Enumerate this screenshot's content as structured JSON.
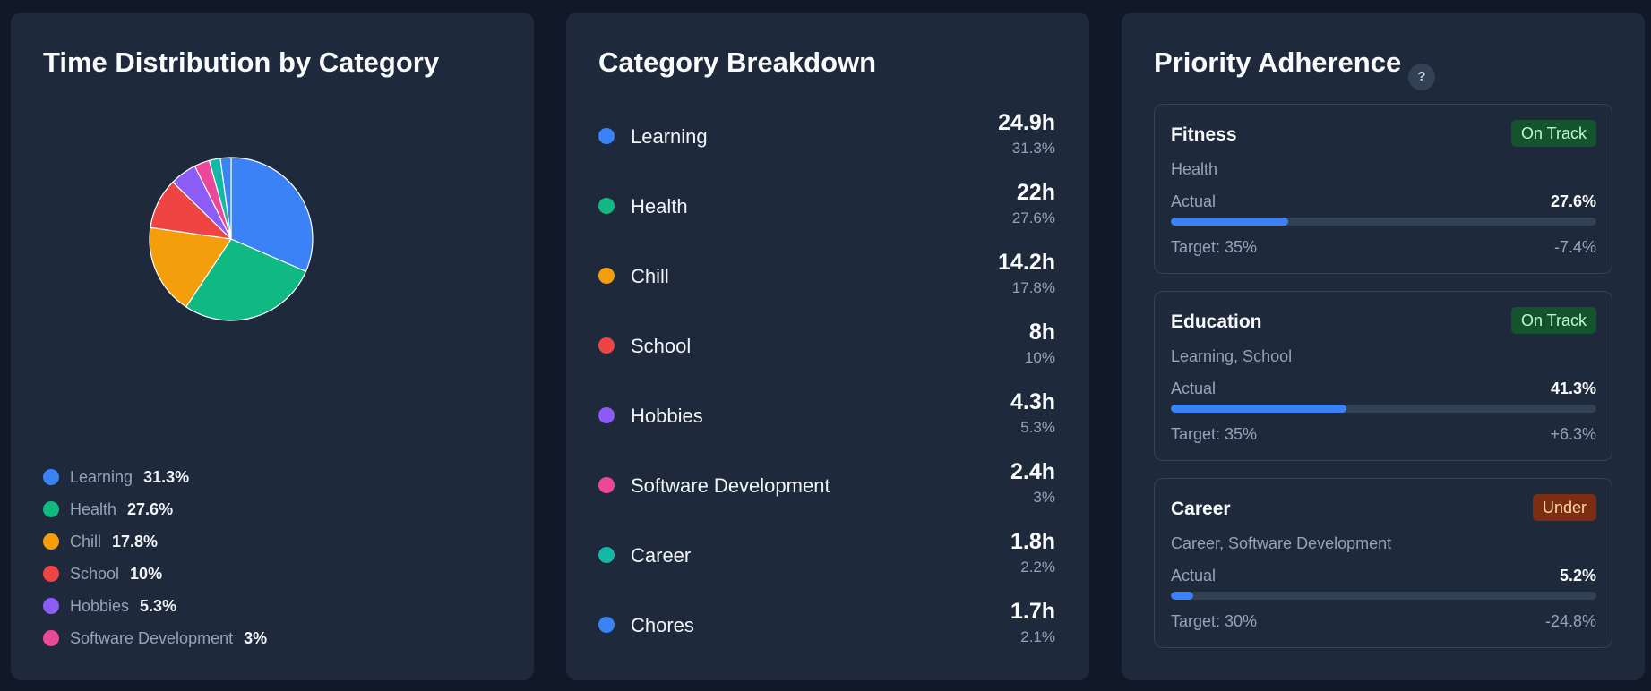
{
  "pie_panel": {
    "title": "Time Distribution by Category",
    "legend": [
      {
        "label": "Learning",
        "pct": "31.3%",
        "color": "#3b82f6"
      },
      {
        "label": "Health",
        "pct": "27.6%",
        "color": "#10b981"
      },
      {
        "label": "Chill",
        "pct": "17.8%",
        "color": "#f59e0b"
      },
      {
        "label": "School",
        "pct": "10%",
        "color": "#ef4444"
      },
      {
        "label": "Hobbies",
        "pct": "5.3%",
        "color": "#8b5cf6"
      },
      {
        "label": "Software Development",
        "pct": "3%",
        "color": "#ec4899"
      }
    ]
  },
  "chart_data": {
    "type": "pie",
    "categories": [
      "Learning",
      "Health",
      "Chill",
      "School",
      "Hobbies",
      "Software Development",
      "Career",
      "Chores"
    ],
    "values": [
      31.3,
      27.6,
      17.8,
      10,
      5.3,
      3,
      2.2,
      2.1
    ],
    "colors": [
      "#3b82f6",
      "#10b981",
      "#f59e0b",
      "#ef4444",
      "#8b5cf6",
      "#ec4899",
      "#14b8a6",
      "#3b82f6"
    ],
    "title": "Time Distribution by Category",
    "start_angle_deg": 90
  },
  "breakdown": {
    "title": "Category Breakdown",
    "items": [
      {
        "name": "Learning",
        "hours": "24.9h",
        "pct": "31.3%",
        "color": "#3b82f6"
      },
      {
        "name": "Health",
        "hours": "22h",
        "pct": "27.6%",
        "color": "#10b981"
      },
      {
        "name": "Chill",
        "hours": "14.2h",
        "pct": "17.8%",
        "color": "#f59e0b"
      },
      {
        "name": "School",
        "hours": "8h",
        "pct": "10%",
        "color": "#ef4444"
      },
      {
        "name": "Hobbies",
        "hours": "4.3h",
        "pct": "5.3%",
        "color": "#8b5cf6"
      },
      {
        "name": "Software Development",
        "hours": "2.4h",
        "pct": "3%",
        "color": "#ec4899"
      },
      {
        "name": "Career",
        "hours": "1.8h",
        "pct": "2.2%",
        "color": "#14b8a6"
      },
      {
        "name": "Chores",
        "hours": "1.7h",
        "pct": "2.1%",
        "color": "#3b82f6"
      }
    ]
  },
  "priority": {
    "title": "Priority Adherence",
    "help_icon": "?",
    "cards": [
      {
        "name": "Fitness",
        "status": "On Track",
        "categories": "Health",
        "actual_label": "Actual",
        "actual": "27.6%",
        "actual_fraction": 0.276,
        "target": "Target: 35%",
        "diff": "-7.4%"
      },
      {
        "name": "Education",
        "status": "On Track",
        "categories": "Learning, School",
        "actual_label": "Actual",
        "actual": "41.3%",
        "actual_fraction": 0.413,
        "target": "Target: 35%",
        "diff": "+6.3%"
      },
      {
        "name": "Career",
        "status": "Under",
        "categories": "Career, Software Development",
        "actual_label": "Actual",
        "actual": "5.2%",
        "actual_fraction": 0.052,
        "target": "Target: 30%",
        "diff": "-24.8%"
      }
    ]
  }
}
